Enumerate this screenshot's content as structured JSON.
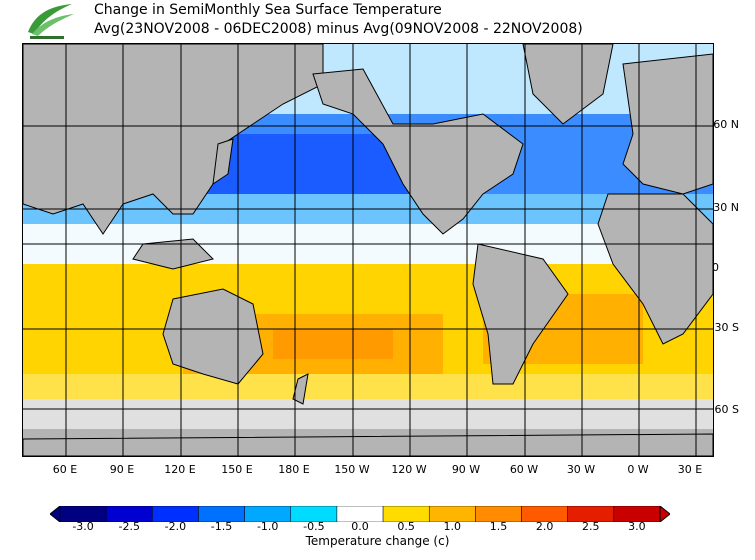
{
  "title": {
    "line1": "Change in SemiMonthly Sea Surface Temperature",
    "line2": "Avg(23NOV2008 - 06DEC2008) minus Avg(09NOV2008 - 22NOV2008)"
  },
  "logo": {
    "icon": "cwb-logo-icon",
    "color": "#3a9a3a"
  },
  "lat_labels": [
    "60 N",
    "30 N",
    "0",
    "30 S",
    "60 S"
  ],
  "lon_labels": [
    "60 E",
    "90 E",
    "120 E",
    "150 E",
    "180 E",
    "150 W",
    "120 W",
    "90 W",
    "60 W",
    "30 W",
    "0 W",
    "30 E"
  ],
  "colorbar": {
    "ticks": [
      "-3.0",
      "-2.5",
      "-2.0",
      "-1.5",
      "-1.0",
      "-0.5",
      "0.0",
      "0.5",
      "1.0",
      "1.5",
      "2.0",
      "2.5",
      "3.0"
    ],
    "colors": [
      "#000080",
      "#0000d0",
      "#0030ff",
      "#0070ff",
      "#00a8ff",
      "#00dcff",
      "#ffffff",
      "#ffdc00",
      "#ffb400",
      "#ff8c00",
      "#ff5a00",
      "#e61e00",
      "#c80000"
    ],
    "label": "Temperature change  (c)"
  },
  "map": {
    "land_color": "#b4b4b4",
    "sea_ice_color": "#e0e0e0"
  }
}
